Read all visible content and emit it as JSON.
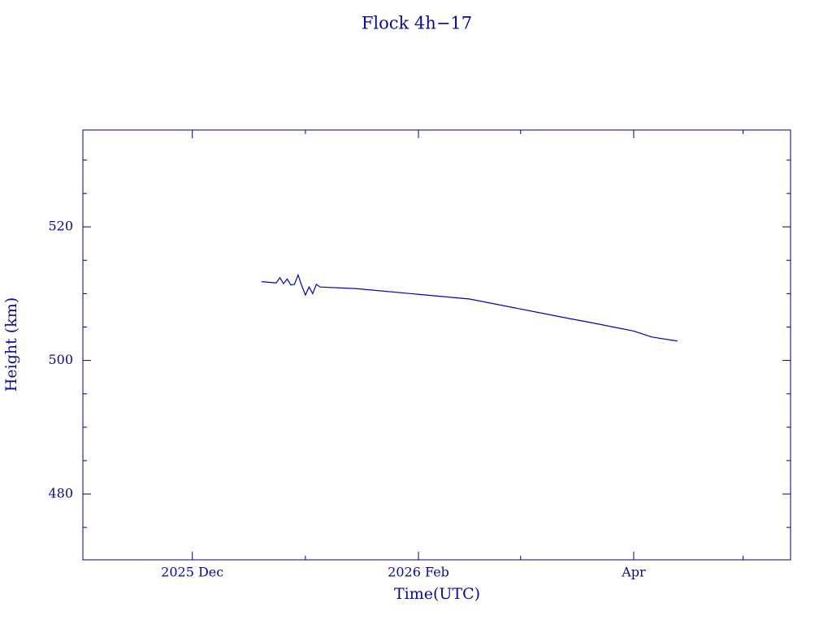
{
  "chart_data": {
    "type": "line",
    "title": "Flock 4h−17",
    "x_label": "Time(UTC)",
    "y_label": "Height (km)",
    "x": [
      "2025-12-20",
      "2025-12-24",
      "2025-12-25",
      "2025-12-26",
      "2025-12-27",
      "2025-12-28",
      "2025-12-29",
      "2025-12-30",
      "2025-12-31",
      "2026-01-01",
      "2026-01-02",
      "2026-01-03",
      "2026-01-04",
      "2026-01-05",
      "2026-01-15",
      "2026-02-01",
      "2026-02-15",
      "2026-03-01",
      "2026-03-15",
      "2026-03-20",
      "2026-04-01",
      "2026-04-06",
      "2026-04-13"
    ],
    "values": [
      511.8,
      511.6,
      512.4,
      511.5,
      512.2,
      511.3,
      511.4,
      512.8,
      511.2,
      509.8,
      511.0,
      510.0,
      511.4,
      511.0,
      510.75,
      509.9,
      509.2,
      507.7,
      506.2,
      505.7,
      504.4,
      503.5,
      502.9
    ],
    "color": "#0000c8",
    "xlim": [
      "2025-11-01",
      "2026-05-14"
    ],
    "xticks": [
      {
        "value": "2025-12-01",
        "label": "2025 Dec"
      },
      {
        "value": "2026-02-01",
        "label": "2026 Feb"
      },
      {
        "value": "2026-04-01",
        "label": "Apr"
      }
    ],
    "xminorticks": [
      "2026-01-01",
      "2026-03-01",
      "2026-05-01"
    ],
    "ylim": [
      470.15,
      534.5
    ],
    "yticks": [
      480,
      500,
      520
    ],
    "yminorticks": [
      475,
      485,
      490,
      495,
      505,
      510,
      515,
      525,
      530
    ]
  }
}
